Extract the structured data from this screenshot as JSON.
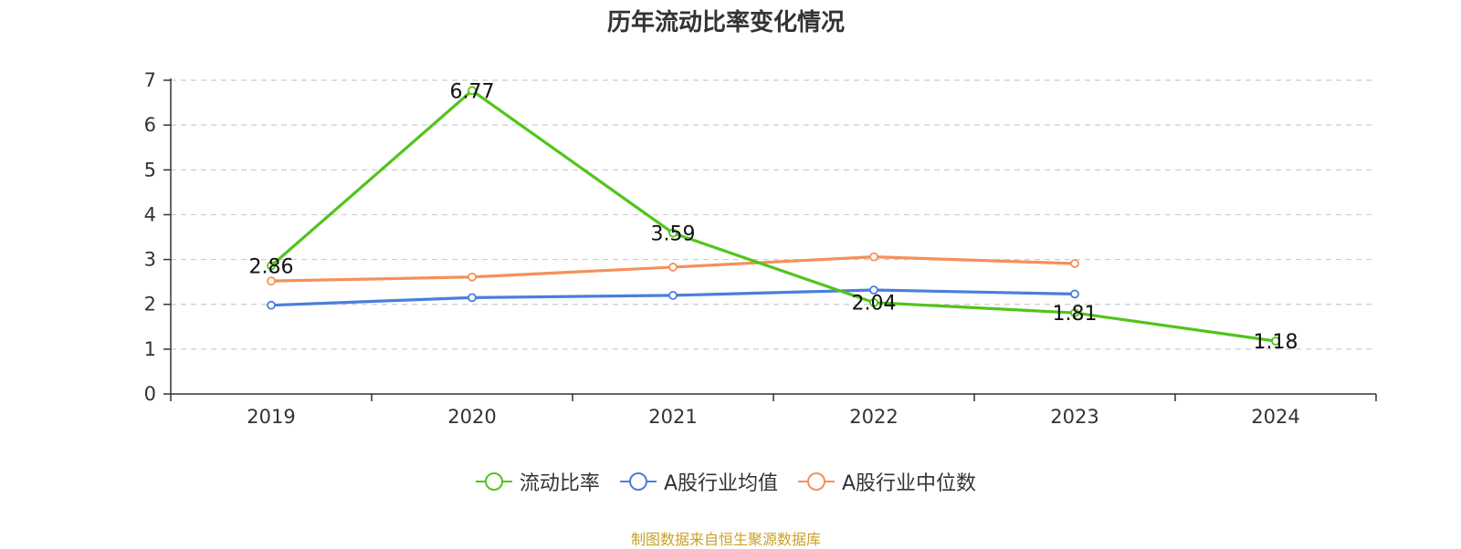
{
  "chart_data": {
    "type": "line",
    "title": "历年流动比率变化情况",
    "categories": [
      "2019",
      "2020",
      "2021",
      "2022",
      "2023",
      "2024"
    ],
    "ylim": [
      0,
      7
    ],
    "yticks": [
      0,
      1,
      2,
      3,
      4,
      5,
      6,
      7
    ],
    "grid": true,
    "legend_position": "bottom",
    "series": [
      {
        "name": "流动比率",
        "color": "#52c41a",
        "values": [
          2.86,
          6.77,
          3.59,
          2.04,
          1.81,
          1.18
        ],
        "labels": [
          "2.86",
          "6.77",
          "3.59",
          "2.04",
          "1.81",
          "1.18"
        ]
      },
      {
        "name": "A股行业均值",
        "color": "#4a7fdb",
        "values": [
          1.98,
          2.15,
          2.2,
          2.32,
          2.23,
          null
        ]
      },
      {
        "name": "A股行业中位数",
        "color": "#f5905a",
        "values": [
          2.52,
          2.61,
          2.83,
          3.06,
          2.91,
          null
        ]
      }
    ]
  },
  "source_note": "制图数据来自恒生聚源数据库"
}
